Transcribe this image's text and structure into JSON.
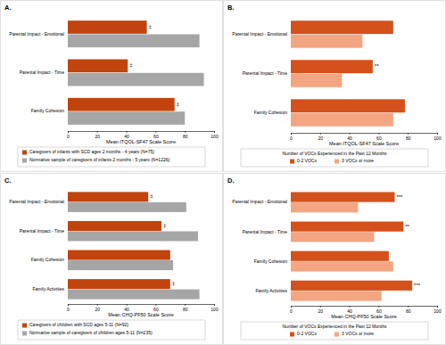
{
  "chart_data": [
    {
      "type": "bar",
      "orientation": "horizontal",
      "title": "A.",
      "xlabel": "Mean ITQOL-SF47 Scale Score",
      "categories": [
        "Parental Impact - Emotional",
        "Parental Impact - Time",
        "Family Cohesion"
      ],
      "series": [
        {
          "name": "Caregivers of infants with SCD ages 2 months - 4 years (N=75)",
          "color": "#c1440e",
          "values": [
            54,
            41,
            73
          ]
        },
        {
          "name": "Normative sample of caregivers of infants 2 months - 5 years (N=1226)",
          "color": "#a6a6a6",
          "values": [
            90,
            93,
            80
          ]
        }
      ],
      "xlim": [
        0,
        100
      ],
      "xticks": [
        0,
        20,
        40,
        60,
        80,
        100
      ],
      "legend": "bottom",
      "annotations": [
        {
          "text": "‡",
          "category": "Parental Impact - Emotional"
        },
        {
          "text": "‡",
          "category": "Parental Impact - Time"
        },
        {
          "text": "‡",
          "category": "Family Cohesion"
        }
      ]
    },
    {
      "type": "bar",
      "orientation": "horizontal",
      "title": "B.",
      "xlabel": "Mean ITQOL-SF47 Scale Score",
      "categories": [
        "Parental Impact - Emotional",
        "Parental Impact - Time",
        "Family Cohesion"
      ],
      "series": [
        {
          "name": "0-2 VOCs",
          "color": "#d4511b",
          "values": [
            70,
            56,
            78
          ]
        },
        {
          "name": "3 VOCs or more",
          "color": "#f4a582",
          "values": [
            49,
            35,
            70
          ]
        }
      ],
      "xlim": [
        0,
        100
      ],
      "xticks": [
        0,
        20,
        40,
        60,
        80,
        100
      ],
      "legend": "bottom",
      "legend_title": "Number of VOCs Experienced in the Past 12 Months",
      "annotations": [
        {
          "text": "**",
          "category": "Parental Impact - Time"
        }
      ]
    },
    {
      "type": "bar",
      "orientation": "horizontal",
      "title": "C.",
      "xlabel": "Mean CHQ-PF50 Scale Score",
      "categories": [
        "Parental Impact - Emotional",
        "Parental Impact - Time",
        "Family Cohesion",
        "Family Activities"
      ],
      "series": [
        {
          "name": "Caregivers of children with SCD ages 5-11 (N=92)",
          "color": "#c1440e",
          "values": [
            55,
            64,
            70,
            70
          ]
        },
        {
          "name": "Normative sample of caregivers of children ages 5-11 (N=235)",
          "color": "#a6a6a6",
          "values": [
            81,
            89,
            72,
            90
          ]
        }
      ],
      "xlim": [
        0,
        100
      ],
      "xticks": [
        0,
        20,
        40,
        60,
        80,
        100
      ],
      "legend": "bottom",
      "annotations": [
        {
          "text": "‡",
          "category": "Parental Impact - Emotional"
        },
        {
          "text": "‡",
          "category": "Parental Impact - Time"
        },
        {
          "text": "‡",
          "category": "Family Activities"
        }
      ]
    },
    {
      "type": "bar",
      "orientation": "horizontal",
      "title": "D.",
      "xlabel": "Mean CHQ-PF50 Scale Score",
      "categories": [
        "Parental Impact - Emotional",
        "Parental Impact - Time",
        "Family Cohesion",
        "Family Activities"
      ],
      "series": [
        {
          "name": "0-2 VOCs",
          "color": "#d4511b",
          "values": [
            71,
            77,
            67,
            83
          ]
        },
        {
          "name": "3 VOCs or more",
          "color": "#f4a582",
          "values": [
            46,
            57,
            70,
            62
          ]
        }
      ],
      "xlim": [
        0,
        100
      ],
      "xticks": [
        0,
        20,
        40,
        60,
        80,
        100
      ],
      "legend": "bottom",
      "legend_title": "Number of VOCs Experienced in the Past 12 Months",
      "annotations": [
        {
          "text": "***",
          "category": "Parental Impact - Emotional"
        },
        {
          "text": "**",
          "category": "Parental Impact - Time"
        },
        {
          "text": "***",
          "category": "Family Activities"
        }
      ]
    }
  ]
}
